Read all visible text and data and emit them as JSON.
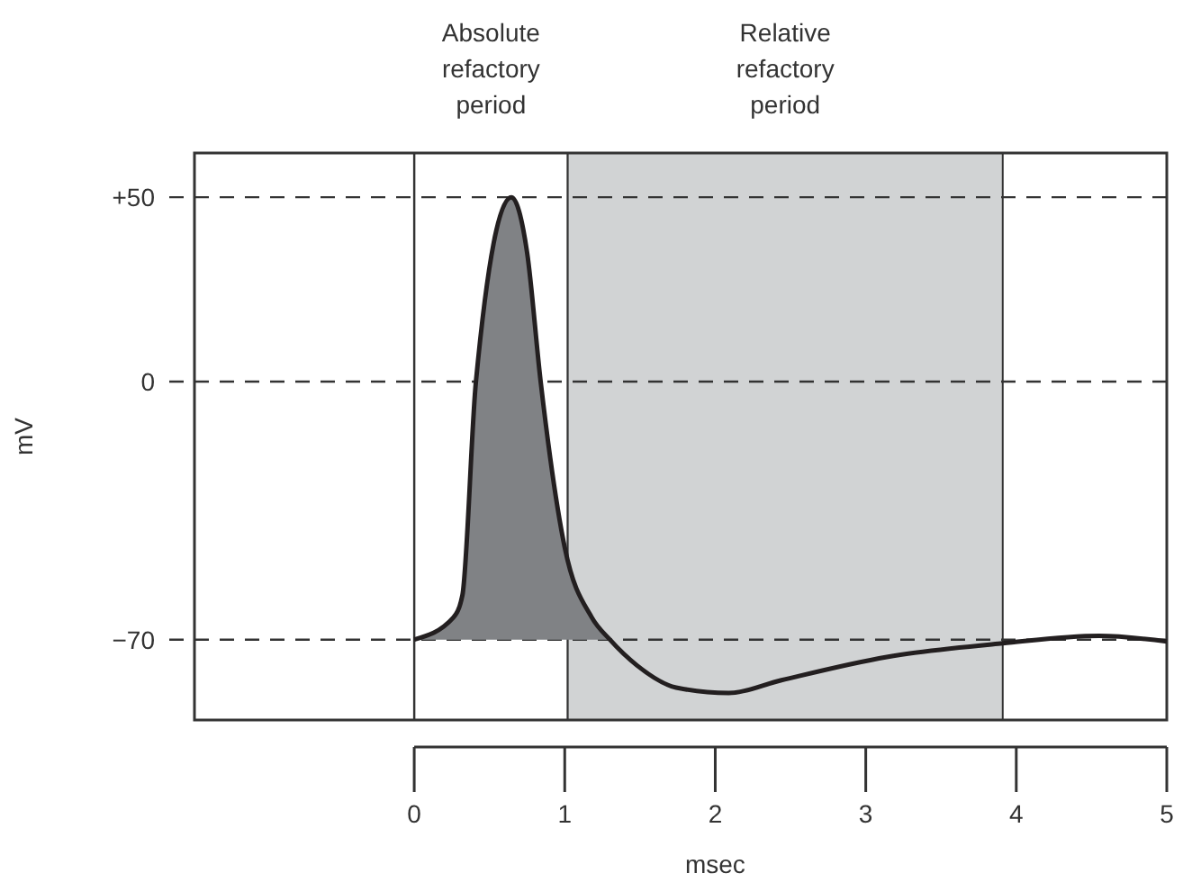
{
  "chart_data": {
    "type": "line",
    "xlabel": "msec",
    "ylabel": "mV",
    "xlim": [
      -1.46,
      5
    ],
    "xticks": [
      0,
      1,
      2,
      3,
      4,
      5
    ],
    "ylim": [
      -91.8,
      62
    ],
    "yticks": [
      {
        "value": 50,
        "label": "+50"
      },
      0,
      {
        "value": -70,
        "label": "−70"
      }
    ],
    "series": [
      {
        "color": "#231f20",
        "x": [
          0,
          0.26,
          0.32,
          0.41,
          0.645,
          0.75,
          0.84,
          1.0,
          1.18,
          1.3,
          1.48,
          1.74,
          2.09,
          2.44,
          3.14,
          3.91,
          4.55,
          5
        ],
        "values": [
          -70,
          -64,
          -58,
          0,
          50,
          35,
          0,
          -45,
          -64,
          -70,
          -77,
          -83,
          -84.5,
          -81,
          -74.7,
          -71,
          -69,
          -70.5
        ],
        "lower": [
          -70,
          -70,
          -70,
          -70,
          -70,
          -70,
          -70,
          -70,
          -70,
          -70,
          null,
          null,
          null,
          null,
          null,
          null,
          null,
          null
        ],
        "upper": [
          -70,
          -64,
          -58,
          0,
          50,
          35,
          0,
          -45,
          -64,
          -70,
          null,
          null,
          null,
          null,
          null,
          null,
          null,
          null
        ]
      }
    ],
    "ref_lines": [
      {
        "axis": "y",
        "value": 50,
        "line_style": "dashed"
      },
      {
        "axis": "y",
        "value": 0,
        "line_style": "dashed"
      },
      {
        "axis": "y",
        "value": -70,
        "line_style": "dashed"
      },
      {
        "axis": "x",
        "value": 0,
        "line_style": "solid"
      }
    ],
    "bands": [
      {
        "axis": "x",
        "from": 0,
        "to": 1.02,
        "label": "Absolute refactory period",
        "color": "#ffffff"
      },
      {
        "axis": "x",
        "from": 1.02,
        "to": 3.91,
        "label": "Relative refactory period",
        "color": "#d1d3d4"
      }
    ]
  }
}
